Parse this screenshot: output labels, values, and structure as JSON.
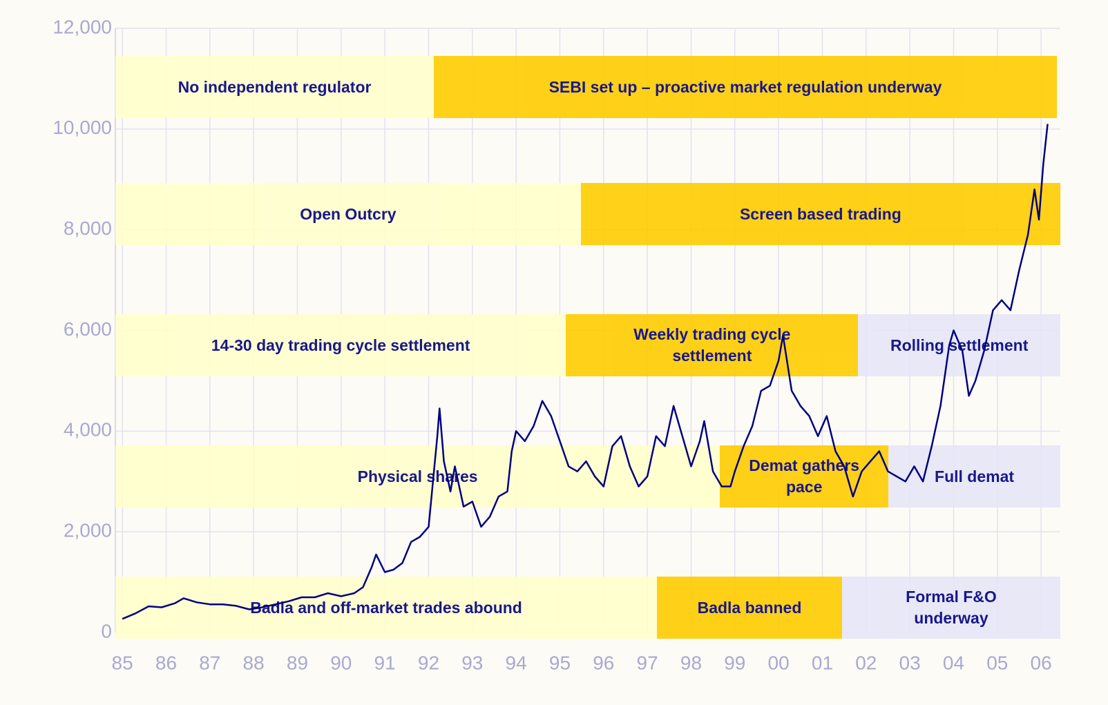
{
  "chart_data": {
    "type": "line",
    "x": [
      1985.0,
      1985.3,
      1985.6,
      1985.9,
      1986.2,
      1986.4,
      1986.7,
      1987.0,
      1987.3,
      1987.6,
      1987.9,
      1988.2,
      1988.5,
      1988.8,
      1989.1,
      1989.4,
      1989.7,
      1990.0,
      1990.3,
      1990.5,
      1990.7,
      1990.8,
      1991.0,
      1991.2,
      1991.4,
      1991.6,
      1991.8,
      1992.0,
      1992.1,
      1992.2,
      1992.25,
      1992.35,
      1992.5,
      1992.6,
      1992.8,
      1993.0,
      1993.2,
      1993.4,
      1993.6,
      1993.8,
      1993.9,
      1994.0,
      1994.2,
      1994.4,
      1994.6,
      1994.8,
      1995.0,
      1995.2,
      1995.4,
      1995.6,
      1995.8,
      1996.0,
      1996.2,
      1996.4,
      1996.6,
      1996.8,
      1997.0,
      1997.2,
      1997.4,
      1997.6,
      1997.8,
      1998.0,
      1998.2,
      1998.3,
      1998.5,
      1998.7,
      1998.9,
      1999.0,
      1999.2,
      1999.4,
      1999.6,
      1999.8,
      2000.0,
      2000.1,
      2000.3,
      2000.5,
      2000.7,
      2000.9,
      2001.1,
      2001.3,
      2001.5,
      2001.7,
      2001.9,
      2002.1,
      2002.3,
      2002.5,
      2002.7,
      2002.9,
      2003.1,
      2003.3,
      2003.5,
      2003.7,
      2003.9,
      2004.0,
      2004.2,
      2004.35,
      2004.5,
      2004.7,
      2004.9,
      2005.1,
      2005.3,
      2005.5,
      2005.7,
      2005.85,
      2005.95,
      2006.05,
      2006.15
    ],
    "series": [
      {
        "color": "#000080",
        "values": [
          270,
          380,
          520,
          500,
          580,
          680,
          600,
          560,
          560,
          530,
          460,
          500,
          560,
          620,
          700,
          700,
          780,
          720,
          780,
          900,
          1300,
          1550,
          1200,
          1250,
          1380,
          1800,
          1900,
          2100,
          3000,
          3900,
          4450,
          3400,
          2800,
          3300,
          2500,
          2600,
          2100,
          2300,
          2700,
          2800,
          3600,
          4000,
          3800,
          4100,
          4600,
          4300,
          3800,
          3300,
          3200,
          3400,
          3100,
          2900,
          3700,
          3900,
          3300,
          2900,
          3100,
          3900,
          3700,
          4500,
          3900,
          3300,
          3800,
          4200,
          3200,
          2900,
          2900,
          3200,
          3700,
          4100,
          4800,
          4900,
          5400,
          5900,
          4800,
          4500,
          4300,
          3900,
          4300,
          3600,
          3300,
          2700,
          3200,
          3400,
          3600,
          3200,
          3100,
          3000,
          3300,
          3000,
          3700,
          4500,
          5700,
          6000,
          5600,
          4700,
          5000,
          5600,
          6400,
          6600,
          6400,
          7200,
          7900,
          8800,
          8200,
          9300,
          10100
        ]
      }
    ],
    "xlim": [
      1984.84,
      2006.44
    ],
    "xticks": [
      {
        "value": 1985,
        "label": "85"
      },
      {
        "value": 1986,
        "label": "86"
      },
      {
        "value": 1987,
        "label": "87"
      },
      {
        "value": 1988,
        "label": "88"
      },
      {
        "value": 1989,
        "label": "89"
      },
      {
        "value": 1990,
        "label": "90"
      },
      {
        "value": 1991,
        "label": "91"
      },
      {
        "value": 1992,
        "label": "92"
      },
      {
        "value": 1993,
        "label": "93"
      },
      {
        "value": 1994,
        "label": "94"
      },
      {
        "value": 1995,
        "label": "95"
      },
      {
        "value": 1996,
        "label": "96"
      },
      {
        "value": 1997,
        "label": "97"
      },
      {
        "value": 1998,
        "label": "98"
      },
      {
        "value": 1999,
        "label": "99"
      },
      {
        "value": 2000,
        "label": "00"
      },
      {
        "value": 2001,
        "label": "01"
      },
      {
        "value": 2002,
        "label": "02"
      },
      {
        "value": 2003,
        "label": "03"
      },
      {
        "value": 2004,
        "label": "04"
      },
      {
        "value": 2005,
        "label": "05"
      },
      {
        "value": 2006,
        "label": "06"
      }
    ],
    "ylim": [
      0,
      12000
    ],
    "yticks": [
      0,
      {
        "value": 2000,
        "label": "2,000"
      },
      {
        "value": 4000,
        "label": "4,000"
      },
      {
        "value": 6000,
        "label": "6,000"
      },
      {
        "value": 8000,
        "label": "8,000"
      },
      {
        "value": 10000,
        "label": "10,000"
      },
      {
        "value": 12000,
        "label": "12,000"
      }
    ],
    "grid": true,
    "bands": [
      {
        "label": "No independent regulator",
        "start": 1984.84,
        "end": 1992.12,
        "row": 0,
        "color": "#ffffcc"
      },
      {
        "label": "SEBI set up – proactive market regulation underway",
        "start": 1992.12,
        "end": 2006.36,
        "row": 0,
        "color": "#ffcc00"
      },
      {
        "label": "Open Outcry",
        "start": 1984.84,
        "end": 1995.48,
        "row": 1,
        "color": "#ffffcc"
      },
      {
        "label": "Screen based trading",
        "start": 1995.48,
        "end": 2006.44,
        "row": 1,
        "color": "#ffcc00"
      },
      {
        "label": "14-30 day trading cycle settlement",
        "start": 1984.84,
        "end": 1995.14,
        "row": 2,
        "color": "#ffffcc"
      },
      {
        "label": "Weekly trading cycle\nsettlement",
        "start": 1995.14,
        "end": 2001.82,
        "row": 2,
        "color": "#ffcc00"
      },
      {
        "label": "Rolling settlement",
        "start": 2001.82,
        "end": 2006.44,
        "row": 2,
        "color": "#e6e6f8"
      },
      {
        "label": "Physical shares",
        "start": 1984.84,
        "end": 1998.66,
        "row": 3,
        "color": "#ffffcc"
      },
      {
        "label": "Demat gathers\npace",
        "start": 1998.66,
        "end": 2002.51,
        "row": 3,
        "color": "#ffcc00"
      },
      {
        "label": "Full demat",
        "start": 2002.51,
        "end": 2006.44,
        "row": 3,
        "color": "#e6e6f8"
      },
      {
        "label": "Badla and off-market trades abound",
        "start": 1984.84,
        "end": 1997.22,
        "row": 4,
        "color": "#ffffcc"
      },
      {
        "label": "Badla banned",
        "start": 1997.22,
        "end": 2001.45,
        "row": 4,
        "color": "#ffcc00"
      },
      {
        "label": "Formal F&O\nunderway",
        "start": 2001.45,
        "end": 2006.44,
        "row": 4,
        "color": "#e6e6f8"
      }
    ]
  }
}
